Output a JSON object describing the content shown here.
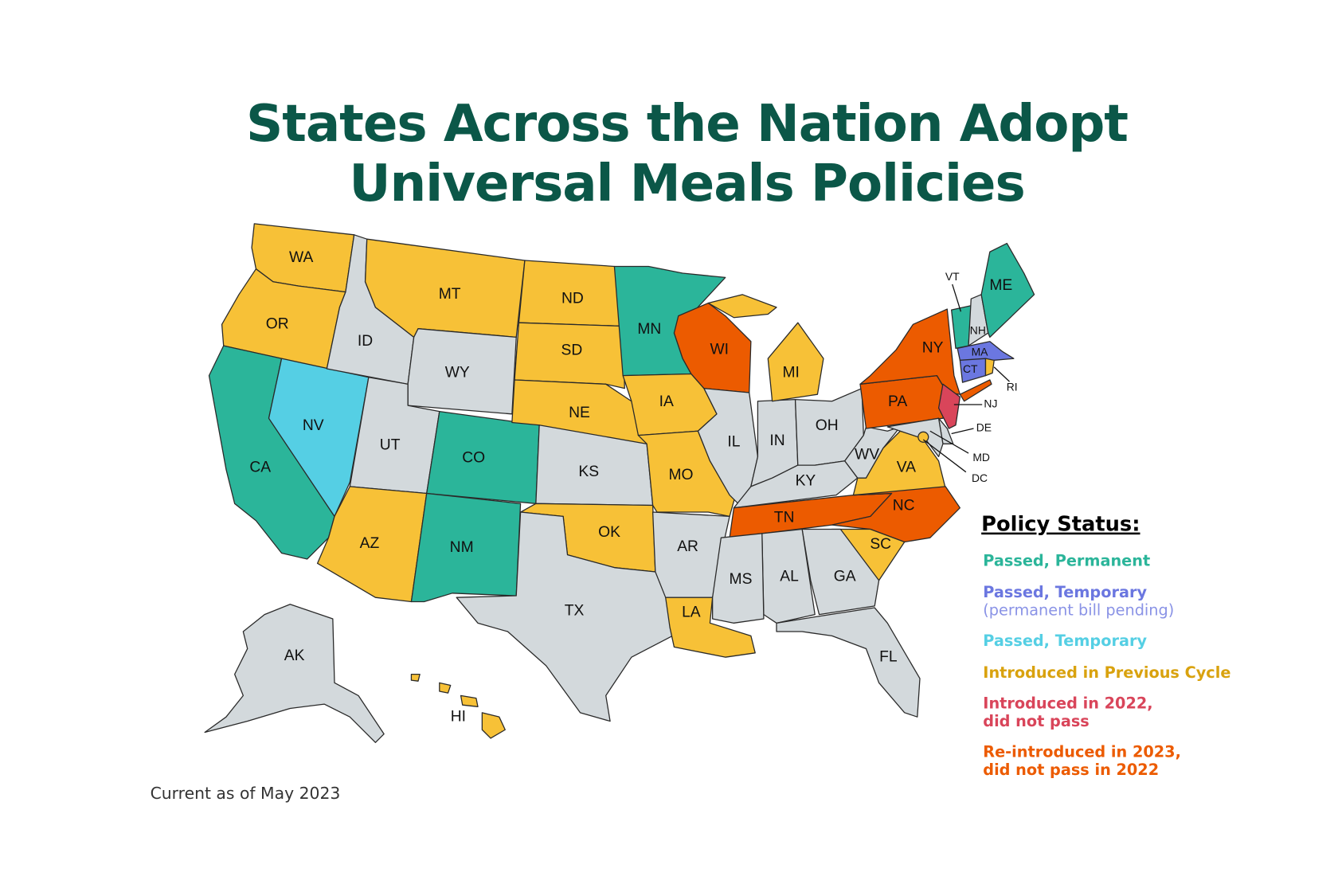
{
  "title": {
    "line1": "States Across the Nation Adopt",
    "line2": "Universal Meals Policies"
  },
  "footer": "Current as of May 2023",
  "legend": {
    "heading": "Policy Status:",
    "items": [
      {
        "key": "permanent",
        "label": "Passed, Permanent",
        "sub": "",
        "color": "#2bb59a",
        "text_color": "#2bb59a"
      },
      {
        "key": "temp_pending",
        "label": "Passed, Temporary",
        "sub": "(permanent bill pending)",
        "color": "#6b77e0",
        "text_color": "#6b77e0"
      },
      {
        "key": "temporary",
        "label": "Passed, Temporary",
        "sub": "",
        "color": "#55cfe4",
        "text_color": "#55cfe4"
      },
      {
        "key": "previous",
        "label": "Introduced in Previous Cycle",
        "sub": "",
        "color": "#f7c137",
        "text_color": "#d9a20e"
      },
      {
        "key": "intro2022",
        "label": "Introduced in 2022,",
        "sub": "did not pass",
        "color": "#d9455a",
        "text_color": "#d9455a"
      },
      {
        "key": "reintro2023",
        "label": "Re-introduced in 2023,",
        "sub": "did not pass in 2022",
        "color": "#ec5b00",
        "text_color": "#ec5b00"
      }
    ],
    "none_color": "#d3d9dc"
  },
  "states": [
    {
      "abbr": "WA",
      "status": "previous"
    },
    {
      "abbr": "OR",
      "status": "previous"
    },
    {
      "abbr": "CA",
      "status": "permanent"
    },
    {
      "abbr": "NV",
      "status": "temporary"
    },
    {
      "abbr": "ID",
      "status": "none"
    },
    {
      "abbr": "MT",
      "status": "previous"
    },
    {
      "abbr": "WY",
      "status": "none"
    },
    {
      "abbr": "UT",
      "status": "none"
    },
    {
      "abbr": "CO",
      "status": "permanent"
    },
    {
      "abbr": "AZ",
      "status": "previous"
    },
    {
      "abbr": "NM",
      "status": "permanent"
    },
    {
      "abbr": "ND",
      "status": "previous"
    },
    {
      "abbr": "SD",
      "status": "previous"
    },
    {
      "abbr": "NE",
      "status": "previous"
    },
    {
      "abbr": "KS",
      "status": "none"
    },
    {
      "abbr": "OK",
      "status": "previous"
    },
    {
      "abbr": "TX",
      "status": "none"
    },
    {
      "abbr": "MN",
      "status": "permanent"
    },
    {
      "abbr": "IA",
      "status": "previous"
    },
    {
      "abbr": "MO",
      "status": "previous"
    },
    {
      "abbr": "AR",
      "status": "none"
    },
    {
      "abbr": "LA",
      "status": "previous"
    },
    {
      "abbr": "WI",
      "status": "reintro2023"
    },
    {
      "abbr": "IL",
      "status": "none"
    },
    {
      "abbr": "IN",
      "status": "none"
    },
    {
      "abbr": "MI",
      "status": "previous"
    },
    {
      "abbr": "OH",
      "status": "none"
    },
    {
      "abbr": "KY",
      "status": "none"
    },
    {
      "abbr": "TN",
      "status": "reintro2023"
    },
    {
      "abbr": "WV",
      "status": "none"
    },
    {
      "abbr": "VA",
      "status": "previous"
    },
    {
      "abbr": "NC",
      "status": "reintro2023"
    },
    {
      "abbr": "SC",
      "status": "previous"
    },
    {
      "abbr": "GA",
      "status": "none"
    },
    {
      "abbr": "AL",
      "status": "none"
    },
    {
      "abbr": "MS",
      "status": "none"
    },
    {
      "abbr": "FL",
      "status": "none"
    },
    {
      "abbr": "PA",
      "status": "reintro2023"
    },
    {
      "abbr": "NY",
      "status": "reintro2023"
    },
    {
      "abbr": "NJ",
      "status": "intro2022"
    },
    {
      "abbr": "DE",
      "status": "none"
    },
    {
      "abbr": "MD",
      "status": "none"
    },
    {
      "abbr": "DC",
      "status": "previous"
    },
    {
      "abbr": "VT",
      "status": "permanent"
    },
    {
      "abbr": "NH",
      "status": "none"
    },
    {
      "abbr": "ME",
      "status": "permanent"
    },
    {
      "abbr": "MA",
      "status": "temp_pending"
    },
    {
      "abbr": "CT",
      "status": "temp_pending"
    },
    {
      "abbr": "RI",
      "status": "previous"
    },
    {
      "abbr": "AK",
      "status": "none"
    },
    {
      "abbr": "HI",
      "status": "previous"
    }
  ]
}
